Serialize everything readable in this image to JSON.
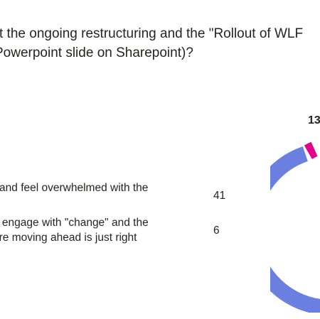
{
  "question": {
    "line1": "t the ongoing restructuring and the \"Rollout of WLF",
    "line2": "Powerpoint slide on Sharepoint)?"
  },
  "options": [
    {
      "line1": "k and feel overwhelmed with the",
      "count": "41"
    },
    {
      "line1": "o engage with \"change\" and the",
      "line2": "are moving ahead is just right",
      "count": "6"
    }
  ],
  "chart_data": {
    "type": "pie",
    "donut": true,
    "slice_labels": [
      "13"
    ],
    "colors": {
      "main_slice": "#6b7fe0",
      "small_slice": "#e3008c"
    }
  }
}
